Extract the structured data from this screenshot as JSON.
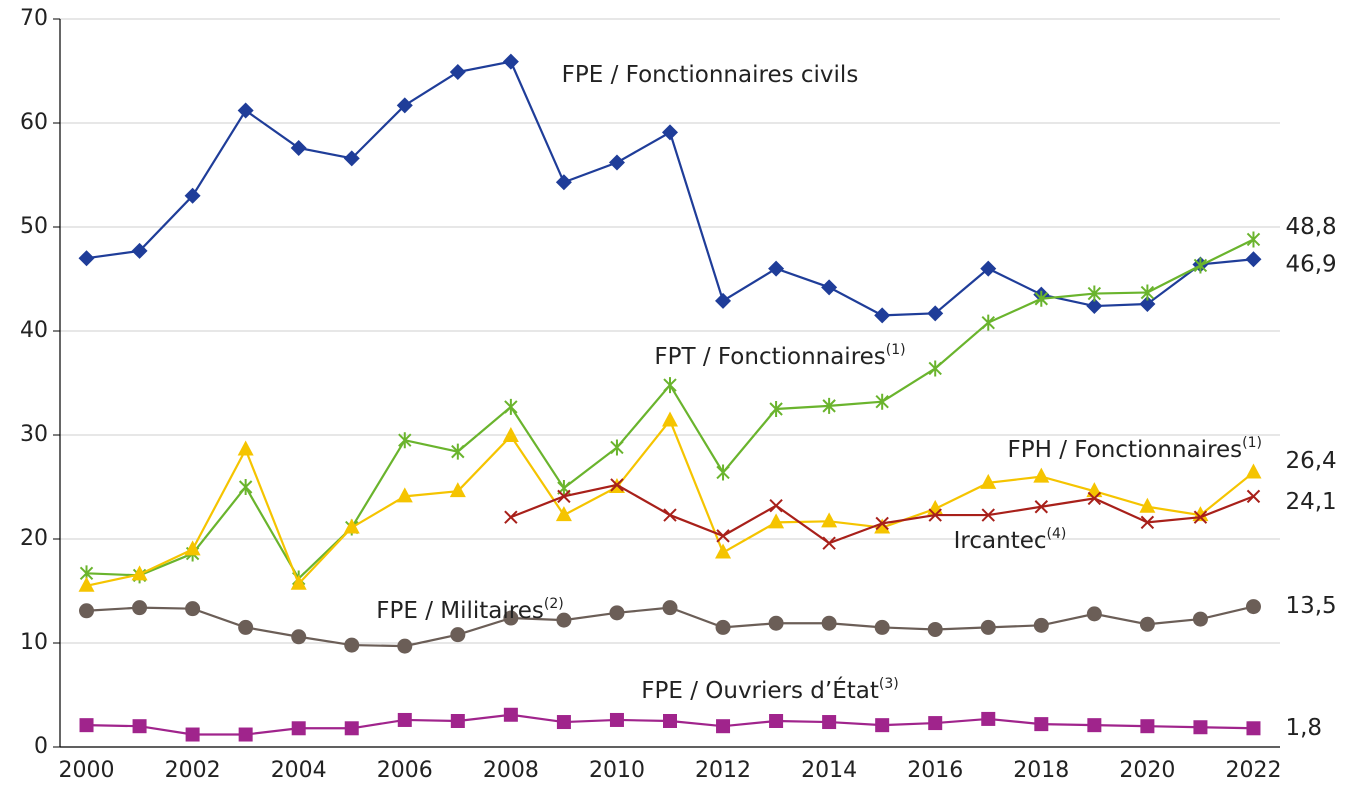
{
  "chart_data": {
    "type": "line",
    "x": [
      2000,
      2001,
      2002,
      2003,
      2004,
      2005,
      2006,
      2007,
      2008,
      2009,
      2010,
      2011,
      2012,
      2013,
      2014,
      2015,
      2016,
      2017,
      2018,
      2019,
      2020,
      2021,
      2022
    ],
    "xlim": [
      1999.5,
      2022.5
    ],
    "xticks": [
      2000,
      2002,
      2004,
      2006,
      2008,
      2010,
      2012,
      2014,
      2016,
      2018,
      2020,
      2022
    ],
    "ylim": [
      0,
      70
    ],
    "yticks": [
      0,
      10,
      20,
      30,
      40,
      50,
      60,
      70
    ],
    "grid": true,
    "series": [
      {
        "name": "FPE / Fonctionnaires civils",
        "color": "#1f3d99",
        "marker": "diamond",
        "values": [
          47,
          47.7,
          53,
          61.2,
          57.6,
          56.6,
          61.7,
          64.9,
          65.9,
          54.3,
          56.2,
          59.1,
          42.9,
          46,
          44.2,
          41.5,
          41.7,
          46,
          43.5,
          42.4,
          42.6,
          46.4,
          46.9
        ],
        "value_labels": [
          null,
          null,
          null,
          null,
          null,
          null,
          null,
          null,
          null,
          null,
          null,
          null,
          null,
          null,
          null,
          null,
          null,
          null,
          null,
          null,
          null,
          null,
          "46,9"
        ]
      },
      {
        "name": "FPT / Fonctionnaires",
        "name_note": "(1)",
        "color": "#6ab42d",
        "marker": "asterisk",
        "values": [
          16.7,
          16.5,
          18.6,
          25,
          16.2,
          21.1,
          29.5,
          28.4,
          32.7,
          24.9,
          28.8,
          34.8,
          26.4,
          32.5,
          32.8,
          33.2,
          36.4,
          40.8,
          43.1,
          43.6,
          43.7,
          46.3,
          48.8
        ],
        "value_labels": [
          null,
          null,
          null,
          null,
          null,
          null,
          null,
          null,
          null,
          null,
          null,
          null,
          null,
          null,
          null,
          null,
          null,
          null,
          null,
          null,
          null,
          null,
          "48,8"
        ]
      },
      {
        "name": "FPH / Fonctionnaires",
        "name_note": "(1)",
        "color": "#f5c400",
        "marker": "triangle",
        "values": [
          15.5,
          16.6,
          19,
          28.6,
          15.7,
          21.1,
          24.1,
          24.6,
          29.9,
          22.3,
          25,
          31.4,
          18.7,
          21.6,
          21.7,
          21.1,
          22.9,
          25.4,
          26,
          24.6,
          23.1,
          22.3,
          26.4
        ],
        "value_labels": [
          null,
          null,
          null,
          null,
          null,
          null,
          null,
          null,
          null,
          null,
          null,
          null,
          null,
          null,
          null,
          null,
          null,
          null,
          null,
          null,
          null,
          null,
          "26,4"
        ]
      },
      {
        "name": "Ircantec",
        "name_note": "(4)",
        "color": "#a8201a",
        "marker": "cross",
        "values": [
          null,
          null,
          null,
          null,
          null,
          null,
          null,
          null,
          22.1,
          24.1,
          25.2,
          22.3,
          20.3,
          23.2,
          19.6,
          21.5,
          22.3,
          22.3,
          23.1,
          23.9,
          21.6,
          22.1,
          24.1
        ],
        "value_labels": [
          null,
          null,
          null,
          null,
          null,
          null,
          null,
          null,
          null,
          null,
          null,
          null,
          null,
          null,
          null,
          null,
          null,
          null,
          null,
          null,
          null,
          null,
          "24,1"
        ]
      },
      {
        "name": "FPE / Militaires",
        "name_note": "(2)",
        "color": "#6b5e57",
        "marker": "circle",
        "values": [
          13.1,
          13.4,
          13.3,
          11.5,
          10.6,
          9.8,
          9.7,
          10.8,
          12.4,
          12.2,
          12.9,
          13.4,
          11.5,
          11.9,
          11.9,
          11.5,
          11.3,
          11.5,
          11.7,
          12.8,
          11.8,
          12.3,
          13.5
        ],
        "value_labels": [
          null,
          null,
          null,
          null,
          null,
          null,
          null,
          null,
          null,
          null,
          null,
          null,
          null,
          null,
          null,
          null,
          null,
          null,
          null,
          null,
          null,
          null,
          "13,5"
        ]
      },
      {
        "name": "FPE / Ouvriers d’État",
        "name_note": "(3)",
        "color": "#a0248c",
        "marker": "square",
        "values": [
          2.1,
          2.0,
          1.2,
          1.2,
          1.8,
          1.8,
          2.6,
          2.5,
          3.1,
          2.4,
          2.6,
          2.5,
          2.0,
          2.5,
          2.4,
          2.1,
          2.3,
          2.7,
          2.2,
          2.1,
          2.0,
          1.9,
          1.8
        ],
        "value_labels": [
          null,
          null,
          null,
          null,
          null,
          null,
          null,
          null,
          null,
          null,
          null,
          null,
          null,
          null,
          null,
          null,
          null,
          null,
          null,
          null,
          null,
          null,
          "1,8"
        ]
      }
    ]
  }
}
